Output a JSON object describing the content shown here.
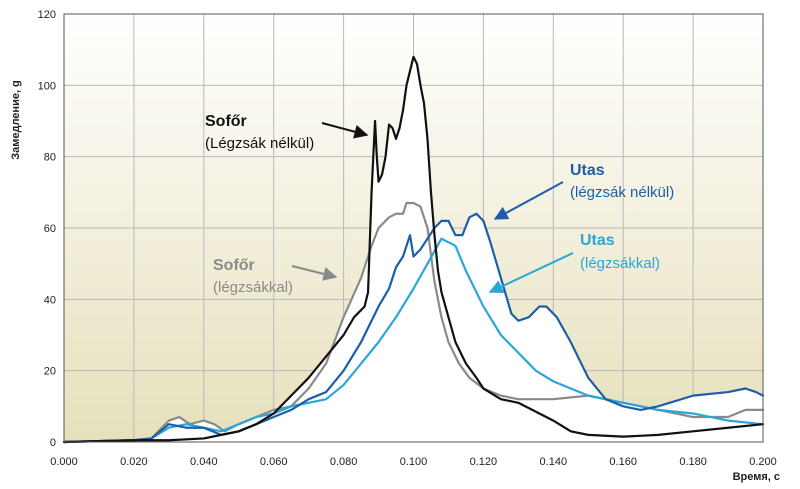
{
  "chart_data": {
    "type": "line",
    "ylabel": "Замедление, g",
    "xlabel": "Время, c",
    "xlim": [
      0,
      0.2
    ],
    "ylim": [
      0,
      120
    ],
    "grid": true,
    "x_ticks": [
      "0.000",
      "0.020",
      "0.040",
      "0.060",
      "0.080",
      "0.100",
      "0.120",
      "0.140",
      "0.160",
      "0.180",
      "0.200"
    ],
    "y_ticks": [
      "0",
      "20",
      "40",
      "60",
      "80",
      "100",
      "120"
    ],
    "colors": {
      "sofor_nelkul": "#111111",
      "sofor_kal": "#8a8a8a",
      "utas_nelkul": "#1c5fa8",
      "utas_kal": "#2aa6d8"
    },
    "series": [
      {
        "key": "sofor_nelkul",
        "name": "Sofőr (Légzsák nélkül)",
        "points": [
          [
            0,
            0
          ],
          [
            0.02,
            0.5
          ],
          [
            0.03,
            0.5
          ],
          [
            0.04,
            1
          ],
          [
            0.045,
            2
          ],
          [
            0.05,
            3
          ],
          [
            0.055,
            5
          ],
          [
            0.06,
            8
          ],
          [
            0.065,
            13
          ],
          [
            0.07,
            18
          ],
          [
            0.075,
            24
          ],
          [
            0.08,
            30
          ],
          [
            0.083,
            35
          ],
          [
            0.086,
            38
          ],
          [
            0.087,
            42
          ],
          [
            0.088,
            70
          ],
          [
            0.089,
            90
          ],
          [
            0.0895,
            80
          ],
          [
            0.09,
            73
          ],
          [
            0.091,
            75
          ],
          [
            0.092,
            80
          ],
          [
            0.093,
            89
          ],
          [
            0.094,
            88
          ],
          [
            0.095,
            85
          ],
          [
            0.096,
            88
          ],
          [
            0.097,
            93
          ],
          [
            0.098,
            100
          ],
          [
            0.099,
            104
          ],
          [
            0.1,
            108
          ],
          [
            0.101,
            106
          ],
          [
            0.102,
            100
          ],
          [
            0.103,
            95
          ],
          [
            0.104,
            85
          ],
          [
            0.105,
            70
          ],
          [
            0.106,
            58
          ],
          [
            0.107,
            48
          ],
          [
            0.108,
            42
          ],
          [
            0.11,
            35
          ],
          [
            0.112,
            28
          ],
          [
            0.115,
            22
          ],
          [
            0.118,
            18
          ],
          [
            0.12,
            15
          ],
          [
            0.125,
            12
          ],
          [
            0.13,
            11
          ],
          [
            0.14,
            6
          ],
          [
            0.145,
            3
          ],
          [
            0.15,
            2
          ],
          [
            0.16,
            1.5
          ],
          [
            0.17,
            2
          ],
          [
            0.18,
            3
          ],
          [
            0.19,
            4
          ],
          [
            0.2,
            5
          ]
        ]
      },
      {
        "key": "sofor_kal",
        "name": "Sofőr (légzsákkal)",
        "points": [
          [
            0,
            0
          ],
          [
            0.02,
            0.5
          ],
          [
            0.025,
            1
          ],
          [
            0.03,
            6
          ],
          [
            0.033,
            7
          ],
          [
            0.036,
            5
          ],
          [
            0.04,
            6
          ],
          [
            0.043,
            5
          ],
          [
            0.046,
            3
          ],
          [
            0.05,
            5
          ],
          [
            0.055,
            7
          ],
          [
            0.06,
            9
          ],
          [
            0.065,
            10
          ],
          [
            0.07,
            15
          ],
          [
            0.075,
            22
          ],
          [
            0.08,
            35
          ],
          [
            0.085,
            46
          ],
          [
            0.088,
            55
          ],
          [
            0.09,
            60
          ],
          [
            0.093,
            63
          ],
          [
            0.095,
            64
          ],
          [
            0.097,
            64
          ],
          [
            0.098,
            67
          ],
          [
            0.1,
            67
          ],
          [
            0.102,
            66
          ],
          [
            0.104,
            60
          ],
          [
            0.106,
            45
          ],
          [
            0.108,
            35
          ],
          [
            0.11,
            28
          ],
          [
            0.113,
            22
          ],
          [
            0.116,
            18
          ],
          [
            0.12,
            15
          ],
          [
            0.125,
            13
          ],
          [
            0.13,
            12
          ],
          [
            0.14,
            12
          ],
          [
            0.15,
            13
          ],
          [
            0.16,
            11
          ],
          [
            0.17,
            9
          ],
          [
            0.18,
            7
          ],
          [
            0.19,
            7
          ],
          [
            0.195,
            9
          ],
          [
            0.2,
            9
          ]
        ]
      },
      {
        "key": "utas_nelkul",
        "name": "Utas (légzsák nélkül)",
        "points": [
          [
            0,
            0
          ],
          [
            0.02,
            0.5
          ],
          [
            0.025,
            1
          ],
          [
            0.03,
            5
          ],
          [
            0.035,
            4
          ],
          [
            0.04,
            4
          ],
          [
            0.045,
            2
          ],
          [
            0.05,
            3
          ],
          [
            0.055,
            5
          ],
          [
            0.06,
            7
          ],
          [
            0.065,
            9
          ],
          [
            0.07,
            12
          ],
          [
            0.075,
            14
          ],
          [
            0.08,
            20
          ],
          [
            0.085,
            28
          ],
          [
            0.09,
            38
          ],
          [
            0.093,
            43
          ],
          [
            0.095,
            49
          ],
          [
            0.097,
            52
          ],
          [
            0.099,
            58
          ],
          [
            0.1,
            52
          ],
          [
            0.102,
            54
          ],
          [
            0.104,
            57
          ],
          [
            0.106,
            60
          ],
          [
            0.108,
            62
          ],
          [
            0.11,
            62
          ],
          [
            0.112,
            58
          ],
          [
            0.114,
            58
          ],
          [
            0.116,
            63
          ],
          [
            0.118,
            64
          ],
          [
            0.12,
            62
          ],
          [
            0.122,
            56
          ],
          [
            0.125,
            46
          ],
          [
            0.128,
            36
          ],
          [
            0.13,
            34
          ],
          [
            0.133,
            35
          ],
          [
            0.136,
            38
          ],
          [
            0.138,
            38
          ],
          [
            0.141,
            35
          ],
          [
            0.145,
            28
          ],
          [
            0.15,
            18
          ],
          [
            0.155,
            12
          ],
          [
            0.16,
            10
          ],
          [
            0.165,
            9
          ],
          [
            0.17,
            10
          ],
          [
            0.18,
            13
          ],
          [
            0.19,
            14
          ],
          [
            0.195,
            15
          ],
          [
            0.198,
            14
          ],
          [
            0.2,
            13
          ]
        ]
      },
      {
        "key": "utas_kal",
        "name": "Utas (légzsákkal)",
        "points": [
          [
            0,
            0
          ],
          [
            0.02,
            0.5
          ],
          [
            0.025,
            1
          ],
          [
            0.03,
            4
          ],
          [
            0.035,
            5
          ],
          [
            0.04,
            4
          ],
          [
            0.045,
            3
          ],
          [
            0.05,
            5
          ],
          [
            0.055,
            7
          ],
          [
            0.06,
            8
          ],
          [
            0.065,
            10
          ],
          [
            0.07,
            11
          ],
          [
            0.075,
            12
          ],
          [
            0.08,
            16
          ],
          [
            0.085,
            22
          ],
          [
            0.09,
            28
          ],
          [
            0.095,
            35
          ],
          [
            0.1,
            43
          ],
          [
            0.104,
            50
          ],
          [
            0.108,
            57
          ],
          [
            0.112,
            55
          ],
          [
            0.115,
            48
          ],
          [
            0.12,
            38
          ],
          [
            0.125,
            30
          ],
          [
            0.13,
            25
          ],
          [
            0.135,
            20
          ],
          [
            0.14,
            17
          ],
          [
            0.15,
            13
          ],
          [
            0.16,
            11
          ],
          [
            0.17,
            9
          ],
          [
            0.18,
            8
          ],
          [
            0.19,
            6
          ],
          [
            0.2,
            5
          ]
        ]
      }
    ],
    "annotations": [
      {
        "key": "sofor_nelkul",
        "title": "Sofőr",
        "subtitle": "(Légzsák nélkül)",
        "color": "#111111"
      },
      {
        "key": "sofor_kal",
        "title": "Sofőr",
        "subtitle": "(légzsákkal)",
        "color": "#8a8a8a"
      },
      {
        "key": "utas_nelkul",
        "title": "Utas",
        "subtitle": "(légzsák nélkül)",
        "color": "#1c5fa8"
      },
      {
        "key": "utas_kal",
        "title": "Utas",
        "subtitle": "(légzsákkal)",
        "color": "#2aa6d8"
      }
    ]
  }
}
